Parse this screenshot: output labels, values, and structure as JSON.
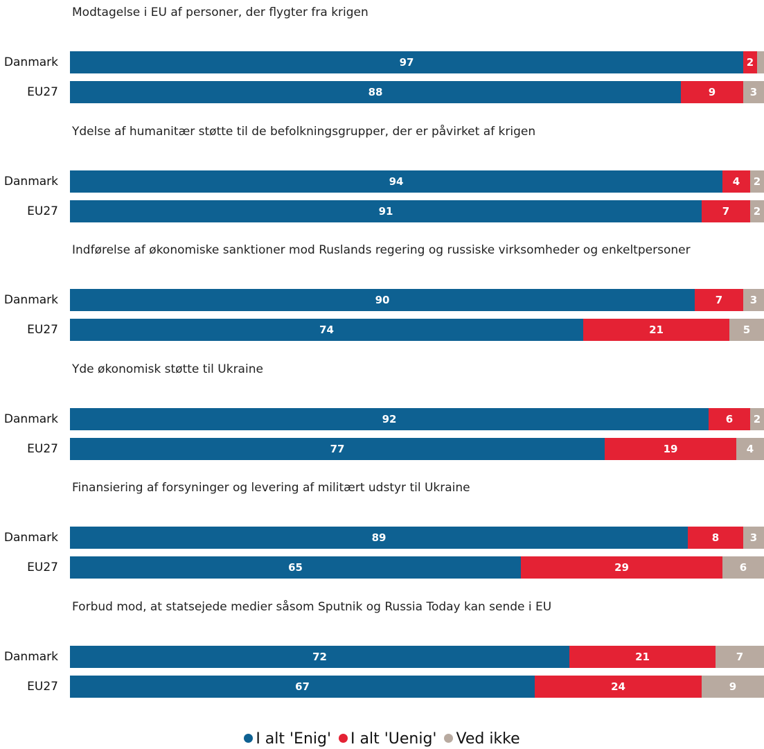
{
  "colors": {
    "agree": "#0e6192",
    "disagree": "#e42234",
    "dontknow": "#b8aaa0"
  },
  "chart_data": {
    "type": "bar",
    "orientation": "horizontal",
    "stacked": true,
    "xlim": [
      0,
      100
    ],
    "grid": false,
    "legend_position": "bottom-center",
    "series": [
      {
        "key": "agree",
        "name": "I alt 'Enig'"
      },
      {
        "key": "disagree",
        "name": "I alt 'Uenig'"
      },
      {
        "key": "dontknow",
        "name": "Ved ikke"
      }
    ],
    "groups": [
      {
        "title": "Modtagelse i EU af personer, der flygter fra krigen",
        "rows": [
          {
            "label": "Danmark",
            "values": [
              97,
              2,
              1
            ],
            "labels": [
              "97",
              "2",
              ""
            ]
          },
          {
            "label": "EU27",
            "values": [
              88,
              9,
              3
            ],
            "labels": [
              "88",
              "9",
              "3"
            ]
          }
        ]
      },
      {
        "title": "Ydelse af humanitær støtte til de befolkningsgrupper, der er påvirket af krigen",
        "rows": [
          {
            "label": "Danmark",
            "values": [
              94,
              4,
              2
            ],
            "labels": [
              "94",
              "4",
              "2"
            ]
          },
          {
            "label": "EU27",
            "values": [
              91,
              7,
              2
            ],
            "labels": [
              "91",
              "7",
              "2"
            ]
          }
        ]
      },
      {
        "title": "Indførelse af økonomiske sanktioner mod Ruslands regering og russiske virksomheder og enkeltpersoner",
        "rows": [
          {
            "label": "Danmark",
            "values": [
              90,
              7,
              3
            ],
            "labels": [
              "90",
              "7",
              "3"
            ]
          },
          {
            "label": "EU27",
            "values": [
              74,
              21,
              5
            ],
            "labels": [
              "74",
              "21",
              "5"
            ]
          }
        ]
      },
      {
        "title": "Yde økonomisk støtte til Ukraine",
        "rows": [
          {
            "label": "Danmark",
            "values": [
              92,
              6,
              2
            ],
            "labels": [
              "92",
              "6",
              "2"
            ]
          },
          {
            "label": "EU27",
            "values": [
              77,
              19,
              4
            ],
            "labels": [
              "77",
              "19",
              "4"
            ]
          }
        ]
      },
      {
        "title": "Finansiering af forsyninger og levering af militært udstyr til Ukraine",
        "rows": [
          {
            "label": "Danmark",
            "values": [
              89,
              8,
              3
            ],
            "labels": [
              "89",
              "8",
              "3"
            ]
          },
          {
            "label": "EU27",
            "values": [
              65,
              29,
              6
            ],
            "labels": [
              "65",
              "29",
              "6"
            ]
          }
        ]
      },
      {
        "title": "Forbud mod, at statsejede medier såsom Sputnik og Russia Today kan sende i EU",
        "rows": [
          {
            "label": "Danmark",
            "values": [
              72,
              21,
              7
            ],
            "labels": [
              "72",
              "21",
              "7"
            ]
          },
          {
            "label": "EU27",
            "values": [
              67,
              24,
              9
            ],
            "labels": [
              "67",
              "24",
              "9"
            ]
          }
        ]
      }
    ]
  },
  "legend": {
    "items": [
      {
        "key": "agree",
        "label": "I alt 'Enig'"
      },
      {
        "key": "disagree",
        "label": "I alt 'Uenig'"
      },
      {
        "key": "dontknow",
        "label": "Ved ikke"
      }
    ]
  }
}
